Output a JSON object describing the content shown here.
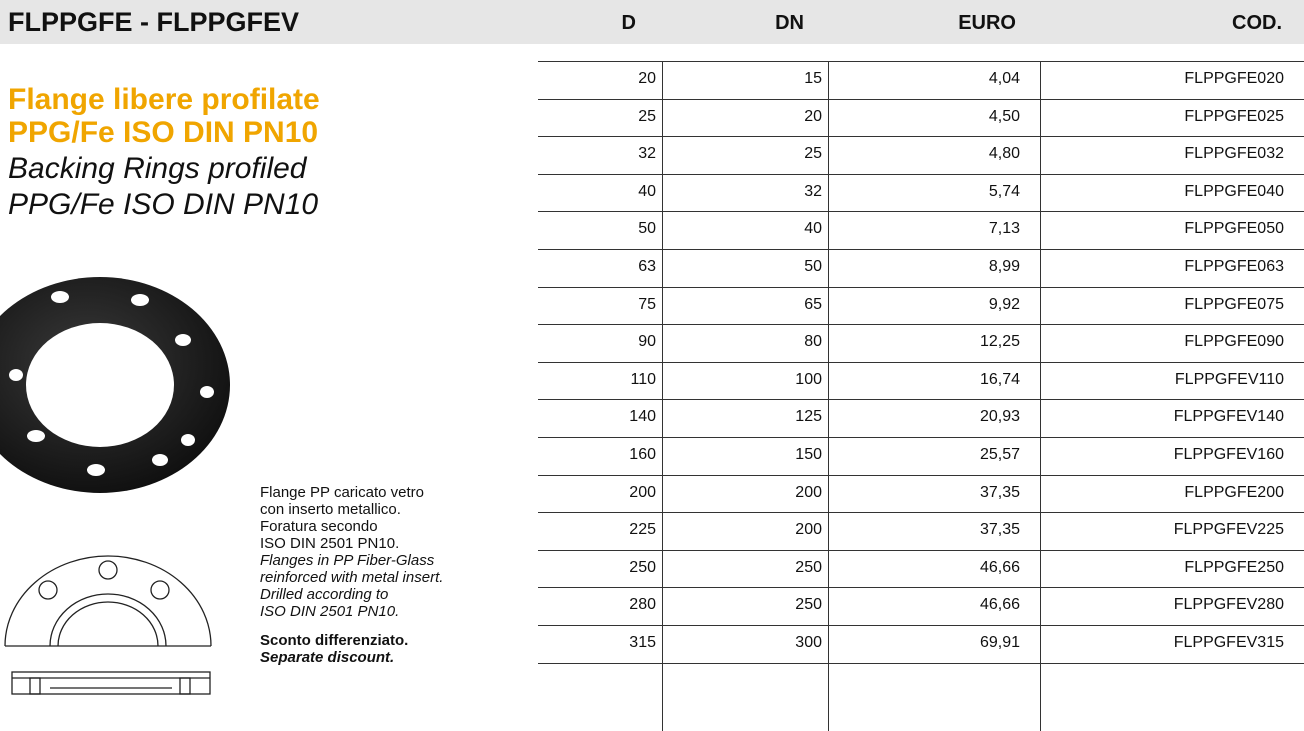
{
  "header": {
    "title": "FLPPGFE - FLPPGFEV"
  },
  "product": {
    "title_it": [
      "Flange libere profilate",
      "PPG/Fe ISO DIN PN10"
    ],
    "title_en": [
      "Backing Rings profiled",
      "PPG/Fe ISO DIN PN10"
    ],
    "description_it": [
      "Flange PP caricato vetro",
      "con inserto metallico.",
      "Foratura secondo",
      "ISO DIN 2501 PN10."
    ],
    "description_en": [
      "Flanges in PP Fiber-Glass",
      "reinforced with metal insert.",
      "Drilled according to",
      "ISO DIN 2501 PN10."
    ],
    "discount_it": "Sconto differenziato.",
    "discount_en": "Separate discount."
  },
  "table": {
    "columns": [
      "D",
      "DN",
      "EURO",
      "COD."
    ],
    "rows": [
      [
        20,
        15,
        "4,04",
        "FLPPGFE020"
      ],
      [
        25,
        20,
        "4,50",
        "FLPPGFE025"
      ],
      [
        32,
        25,
        "4,80",
        "FLPPGFE032"
      ],
      [
        40,
        32,
        "5,74",
        "FLPPGFE040"
      ],
      [
        50,
        40,
        "7,13",
        "FLPPGFE050"
      ],
      [
        63,
        50,
        "8,99",
        "FLPPGFE063"
      ],
      [
        75,
        65,
        "9,92",
        "FLPPGFE075"
      ],
      [
        90,
        80,
        "12,25",
        "FLPPGFE090"
      ],
      [
        110,
        100,
        "16,74",
        "FLPPGFEV110"
      ],
      [
        140,
        125,
        "20,93",
        "FLPPGFEV140"
      ],
      [
        160,
        150,
        "25,57",
        "FLPPGFEV160"
      ],
      [
        200,
        200,
        "37,35",
        "FLPPGFE200"
      ],
      [
        225,
        200,
        "37,35",
        "FLPPGFEV225"
      ],
      [
        250,
        250,
        "46,66",
        "FLPPGFE250"
      ],
      [
        280,
        250,
        "46,66",
        "FLPPGFEV280"
      ],
      [
        315,
        300,
        "69,91",
        "FLPPGFEV315"
      ]
    ]
  }
}
